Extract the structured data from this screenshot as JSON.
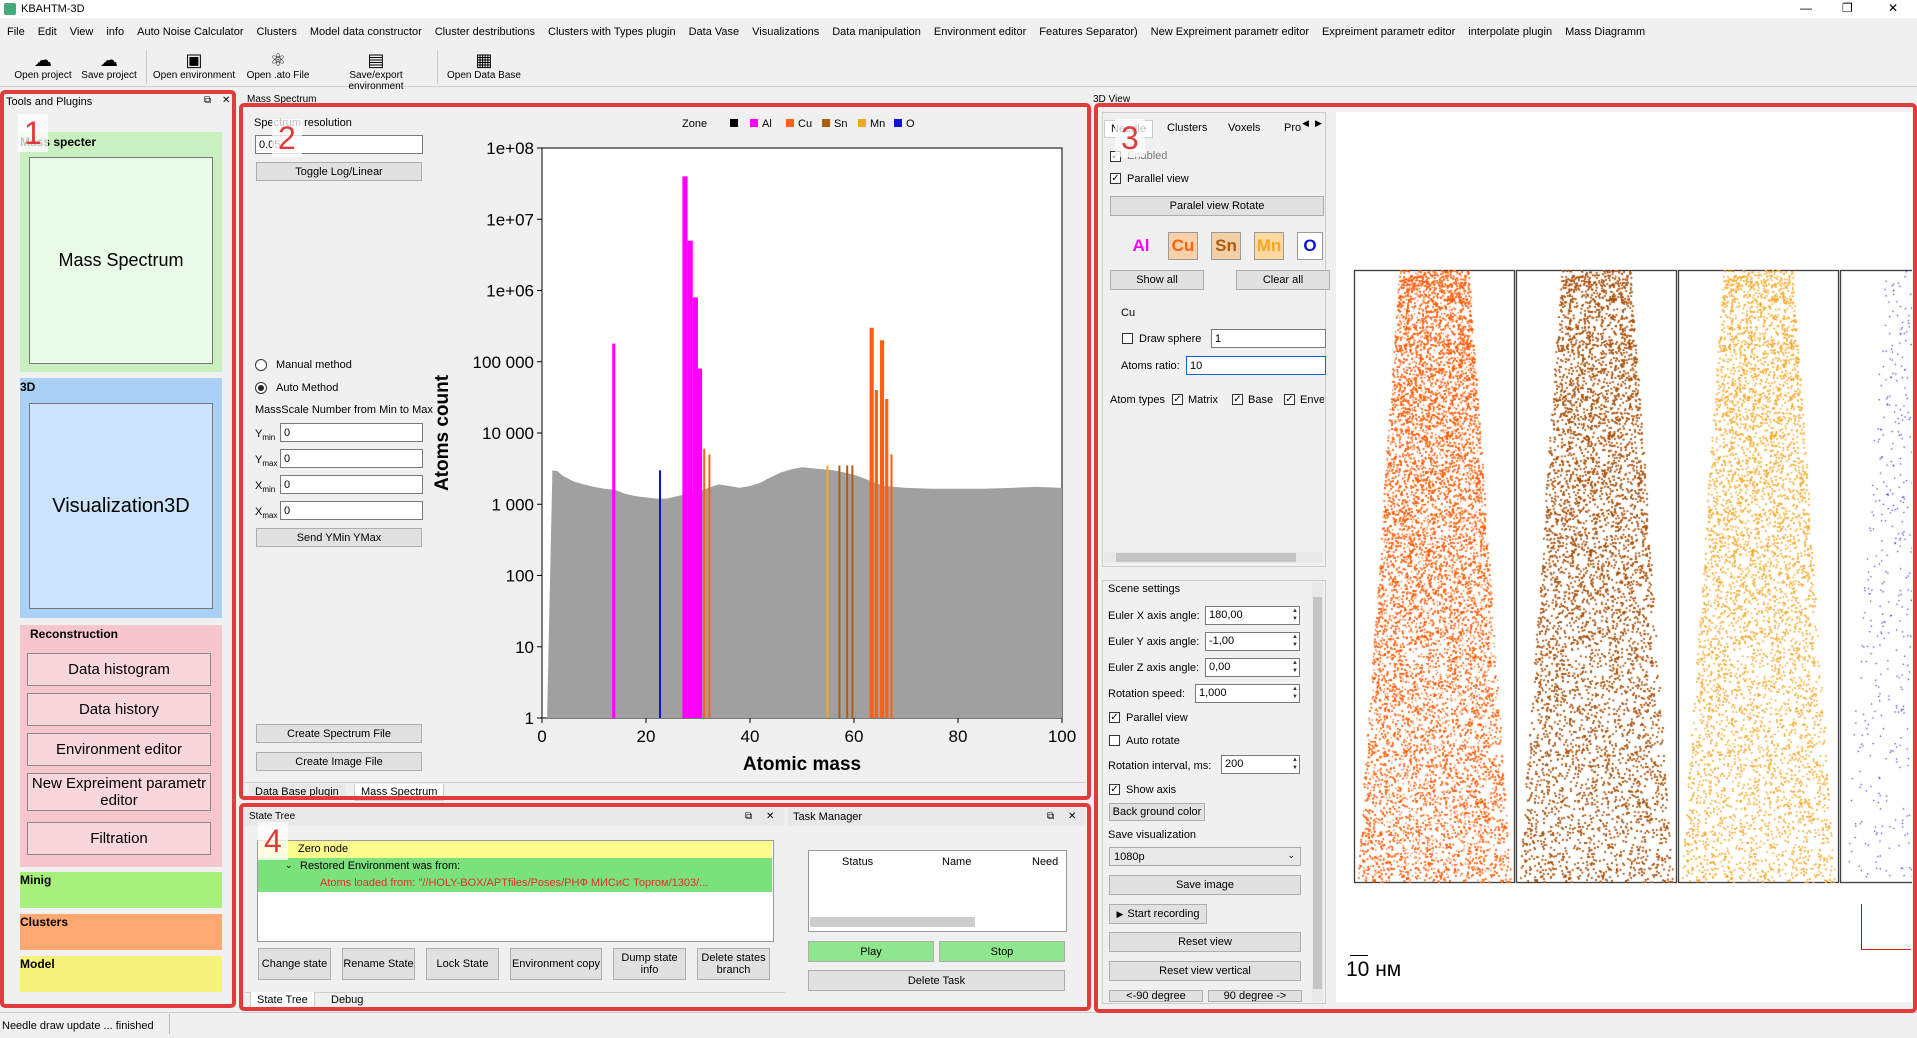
{
  "app": {
    "title": "KBAHTM-3D",
    "icon": "app-icon"
  },
  "window_controls": {
    "minimize": "—",
    "restore": "❐",
    "close": "✕"
  },
  "menu": [
    "File",
    "Edit",
    "View",
    "info",
    "Auto Noise Calculator",
    "Clusters",
    "Model data constructor",
    "Cluster destributions",
    "Clusters with Types plugin",
    "Data Vase",
    "Visualizations",
    "Data manipulation",
    "Environment editor",
    "Features Separator)",
    "New Expreiment parametr editor",
    "Expreiment parametr editor",
    "interpolate plugin",
    "Mass Diagramm"
  ],
  "toolbar": [
    {
      "label": "Open project",
      "icon": "cloud-download-icon"
    },
    {
      "label": "Save project",
      "icon": "cloud-upload-icon"
    },
    {
      "label": "Open environment",
      "icon": "folder-icon"
    },
    {
      "label": "Open .ato File",
      "icon": "atom-icon"
    },
    {
      "label": "Save/export environment",
      "icon": "export-icon"
    },
    {
      "label": "Open Data Base",
      "icon": "database-icon"
    }
  ],
  "tools_panel": {
    "title": "Tools and Plugins",
    "mass_section": "Mass specter",
    "mass_button": "Mass Spectrum",
    "viz_section": "3D",
    "viz_button": "Visualization3D",
    "recon_section": "Reconstruction",
    "recon_buttons": [
      "Data histogram",
      "Data history",
      "Environment editor",
      "New Expreiment parametr editor",
      "Filtration"
    ],
    "minig_section": "Minig",
    "clusters_section": "Clusters",
    "model_section": "Model"
  },
  "spectrum_panel": {
    "header": "Mass Spectrum",
    "resolution_label": "Spectrum resolution",
    "resolution_value": "0.05",
    "toggle_button": "Toggle Log/Linear",
    "manual_method": "Manual method",
    "auto_method": "Auto Method",
    "scale_label": "MassScale Number from Min to Max",
    "ymin_label": "Y",
    "ymin_sub": "min",
    "ymin_value": "0",
    "ymax_label": "Y",
    "ymax_sub": "max",
    "ymax_value": "0",
    "xmin_label": "X",
    "xmin_sub": "min",
    "xmin_value": "0",
    "xmax_label": "X",
    "xmax_sub": "max",
    "xmax_value": "0",
    "send_button": "Send YMin YMax",
    "create_spectrum_button": "Create Spectrum File",
    "create_image_button": "Create Image File",
    "tabs": [
      "Data Base plugin",
      "Mass Spectrum"
    ]
  },
  "chart_data": {
    "type": "bar",
    "xlabel": "Atomic mass",
    "ylabel": "Atoms count",
    "xlim": [
      0,
      100
    ],
    "ylim": [
      1,
      100000000
    ],
    "log_y": true,
    "x_ticks": [
      "0",
      "20",
      "40",
      "60",
      "80",
      "100"
    ],
    "y_ticks": [
      "1",
      "10",
      "100",
      "1 000",
      "10 000",
      "100 000",
      "1e+06",
      "1e+07",
      "1e+08"
    ],
    "legend": {
      "title": "Zone",
      "placement": "top",
      "items": [
        {
          "name": "",
          "color": "#000000"
        },
        {
          "name": "Al",
          "color": "#ff00ff"
        },
        {
          "name": "Cu",
          "color": "#ff6010"
        },
        {
          "name": "Sn",
          "color": "#b05a10"
        },
        {
          "name": "Mn",
          "color": "#f5a623"
        },
        {
          "name": "O",
          "color": "#1010e0"
        }
      ]
    },
    "background_color": "#a0a0a0",
    "background": [
      [
        1,
        1.3
      ],
      [
        2,
        3000
      ],
      [
        3,
        2900
      ],
      [
        4,
        2500
      ],
      [
        6,
        2100
      ],
      [
        8,
        1900
      ],
      [
        10,
        1750
      ],
      [
        12,
        1650
      ],
      [
        14,
        1600
      ],
      [
        16,
        1400
      ],
      [
        18,
        1300
      ],
      [
        20,
        1250
      ],
      [
        22,
        1200
      ],
      [
        24,
        1200
      ],
      [
        26,
        1300
      ],
      [
        28,
        1400
      ],
      [
        30,
        1500
      ],
      [
        32,
        1700
      ],
      [
        34,
        1900
      ],
      [
        36,
        1800
      ],
      [
        38,
        1700
      ],
      [
        40,
        1800
      ],
      [
        42,
        2000
      ],
      [
        44,
        2400
      ],
      [
        46,
        2800
      ],
      [
        48,
        3100
      ],
      [
        50,
        3300
      ],
      [
        52,
        3200
      ],
      [
        54,
        3100
      ],
      [
        56,
        3000
      ],
      [
        58,
        2800
      ],
      [
        60,
        2600
      ],
      [
        62,
        2300
      ],
      [
        64,
        2000
      ],
      [
        66,
        1800
      ],
      [
        70,
        1700
      ],
      [
        75,
        1650
      ],
      [
        80,
        1650
      ],
      [
        85,
        1650
      ],
      [
        90,
        1700
      ],
      [
        95,
        1750
      ],
      [
        100,
        1700
      ]
    ],
    "peaks": [
      {
        "x": 13.5,
        "y": 180000,
        "color": "#ff00ff",
        "w": 0.6
      },
      {
        "x": 22.5,
        "y": 3000,
        "color": "#1010e0",
        "w": 0.3
      },
      {
        "x": 27.0,
        "y": 40000000,
        "color": "#ff00ff",
        "w": 1.0
      },
      {
        "x": 28.0,
        "y": 5000000,
        "color": "#ff00ff",
        "w": 1.0
      },
      {
        "x": 29.0,
        "y": 800000,
        "color": "#ff00ff",
        "w": 1.0
      },
      {
        "x": 30.0,
        "y": 80000,
        "color": "#ff00ff",
        "w": 0.8
      },
      {
        "x": 31.0,
        "y": 6000,
        "color": "#ff6010",
        "w": 0.3
      },
      {
        "x": 32.0,
        "y": 5000,
        "color": "#ff6010",
        "w": 0.3
      },
      {
        "x": 54.7,
        "y": 3500,
        "color": "#f5a623",
        "w": 0.3
      },
      {
        "x": 57.0,
        "y": 3500,
        "color": "#b05a10",
        "w": 0.3
      },
      {
        "x": 58.5,
        "y": 3500,
        "color": "#b05a10",
        "w": 0.3
      },
      {
        "x": 59.5,
        "y": 3500,
        "color": "#b05a10",
        "w": 0.3
      },
      {
        "x": 63.0,
        "y": 300000,
        "color": "#ff6010",
        "w": 0.8
      },
      {
        "x": 64.0,
        "y": 40000,
        "color": "#ff6010",
        "w": 0.6
      },
      {
        "x": 65.0,
        "y": 200000,
        "color": "#ff6010",
        "w": 0.8
      },
      {
        "x": 66.0,
        "y": 30000,
        "color": "#ff6010",
        "w": 0.6
      },
      {
        "x": 67.0,
        "y": 5000,
        "color": "#ff6010",
        "w": 0.4
      }
    ]
  },
  "state_tree": {
    "header": "State Tree",
    "root": "Zero node",
    "child": "Restored Environment was from:",
    "grandchild": "Atoms loaded from: \"//HOLY-BOX/APTfiles/Poses/РНФ МИСиС Торгом/1303/...",
    "buttons": [
      "Change state",
      "Rename State",
      "Lock State",
      "Environment copy",
      "Dump state info",
      "Delete states branch"
    ],
    "tabs": [
      "State Tree",
      "Debug"
    ]
  },
  "task_manager": {
    "header": "Task Manager",
    "columns": [
      "Status",
      "Name",
      "Need"
    ],
    "play": "Play",
    "stop": "Stop",
    "delete": "Delete Task"
  },
  "viz_panel": {
    "header": "3D View",
    "tabs": [
      "Needle",
      "Clusters",
      "Voxels",
      "Pro"
    ],
    "enabled": "Enabled",
    "parallel_view": "Parallel view",
    "parallel_rotate": "Paralel view Rotate",
    "atoms": [
      {
        "symbol": "Al",
        "color": "#ff00ff",
        "bg": "#f0f0f0"
      },
      {
        "symbol": "Cu",
        "color": "#ff6010",
        "bg": "#fbd0a8"
      },
      {
        "symbol": "Sn",
        "color": "#b05a10",
        "bg": "#f2cfa5"
      },
      {
        "symbol": "Mn",
        "color": "#f5a623",
        "bg": "#fcd9a1"
      },
      {
        "symbol": "O",
        "color": "#1010e0",
        "bg": "#ffffff"
      }
    ],
    "show_all": "Show all",
    "clear_all": "Clear all",
    "group": "Cu",
    "draw_sphere": "Draw sphere",
    "sphere_value": "1",
    "atoms_ratio_label": "Atoms ratio:",
    "atoms_ratio_value": "10",
    "atom_types_label": "Atom types",
    "matrix": "Matrix",
    "base": "Base",
    "envel": "Envel"
  },
  "scene_settings": {
    "title": "Scene settings",
    "euler_x_label": "Euler X axis angle:",
    "euler_x": "180,00",
    "euler_y_label": "Euler Y axis angle:",
    "euler_y": "-1,00",
    "euler_z_label": "Euler Z axis angle:",
    "euler_z": "0,00",
    "rotation_speed_label": "Rotation speed:",
    "rotation_speed": "1,000",
    "parallel_view": "Parallel view",
    "auto_rotate": "Auto rotate",
    "rotation_interval_label": "Rotation interval, ms:",
    "rotation_interval": "200",
    "show_axis": "Show axis",
    "background_color": "Back ground color",
    "save_visualization": "Save visualization",
    "resolution": "1080p",
    "save_image": "Save image",
    "start_recording": "Start recording",
    "reset_view": "Reset view",
    "reset_view_vertical": "Reset view vertical",
    "minus90": "<-90 degree",
    "plus90": "90 degree ->"
  },
  "view3d": {
    "scale_label": "10 нм",
    "columns": [
      {
        "color": "#ff5a00",
        "density": "high"
      },
      {
        "color": "#a85008",
        "density": "high"
      },
      {
        "color": "#f5a623",
        "density": "medium"
      },
      {
        "color": "#2020d0",
        "density": "low"
      }
    ]
  },
  "region_labels": [
    "1",
    "2",
    "3",
    "4"
  ],
  "status_bar": "Needle draw update ... finished"
}
